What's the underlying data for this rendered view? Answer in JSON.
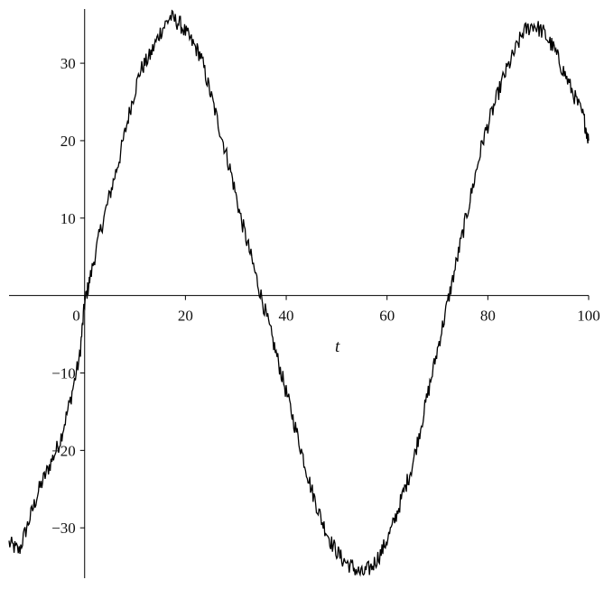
{
  "chart_data": {
    "type": "line",
    "title": "",
    "xlabel": "t",
    "ylabel": "",
    "xlim": [
      -15,
      100
    ],
    "ylim": [
      -36.5,
      37
    ],
    "grid": false,
    "legend": "none",
    "line_color": "#000000",
    "x_ticks": [
      {
        "value": 0,
        "label": "0"
      },
      {
        "value": 20,
        "label": "20"
      },
      {
        "value": 40,
        "label": "40"
      },
      {
        "value": 60,
        "label": "60"
      },
      {
        "value": 80,
        "label": "80"
      },
      {
        "value": 100,
        "label": "100"
      }
    ],
    "y_ticks": [
      {
        "value": 30,
        "label": "30"
      },
      {
        "value": 20,
        "label": "20"
      },
      {
        "value": 10,
        "label": "10"
      },
      {
        "value": -10,
        "label": "−10"
      },
      {
        "value": -20,
        "label": "−20"
      },
      {
        "value": -30,
        "label": "−30"
      }
    ],
    "series": [
      {
        "x": [
          -15,
          -13,
          -11,
          -9,
          -7,
          -5,
          -3,
          -1,
          0,
          1,
          3,
          5,
          7,
          9,
          11,
          13,
          15,
          17,
          19,
          21,
          23,
          25,
          27,
          29,
          31,
          33,
          35,
          37,
          39,
          41,
          43,
          45,
          47,
          49,
          51,
          53,
          55,
          57,
          59,
          61,
          63,
          65,
          67,
          69,
          71,
          73,
          75,
          77,
          79,
          81,
          83,
          85,
          87,
          89,
          91,
          93,
          95,
          97,
          99,
          100
        ],
        "y": [
          -32,
          -33,
          -29,
          -25,
          -22,
          -19,
          -14,
          -8,
          -1,
          2,
          8,
          13,
          18,
          24,
          29,
          31,
          34,
          36,
          35,
          33,
          31,
          26,
          21,
          16,
          10,
          5,
          0,
          -5,
          -10,
          -15,
          -20,
          -25,
          -29,
          -32,
          -34,
          -35,
          -36,
          -35,
          -33,
          -30,
          -26,
          -22,
          -16,
          -10,
          -4,
          2,
          8,
          14,
          20,
          24,
          28,
          31,
          34,
          35,
          34,
          32,
          29,
          26,
          23,
          20
        ]
      }
    ]
  }
}
